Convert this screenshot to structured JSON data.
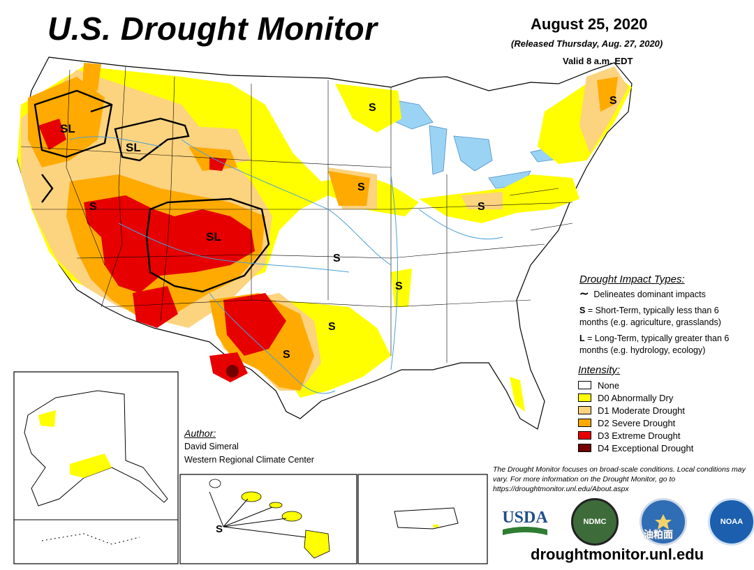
{
  "header": {
    "title": "U.S. Drought Monitor",
    "date": "August 25, 2020",
    "released": "(Released Thursday, Aug. 27, 2020)",
    "valid": "Valid 8 a.m. EDT"
  },
  "impact": {
    "heading": "Drought Impact Types:",
    "delineates": "Delineates dominant impacts",
    "short_key": "S",
    "short_text": " = Short-Term, typically less than 6 months (e.g. agriculture, grasslands)",
    "long_key": "L",
    "long_text": " = Long-Term, typically greater than 6 months (e.g. hydrology, ecology)"
  },
  "intensity": {
    "heading": "Intensity:",
    "items": [
      {
        "label": "None",
        "color": "#ffffff"
      },
      {
        "label": "D0 Abnormally Dry",
        "color": "#ffff00"
      },
      {
        "label": "D1 Moderate Drought",
        "color": "#fcd37f"
      },
      {
        "label": "D2 Severe Drought",
        "color": "#ffaa00"
      },
      {
        "label": "D3 Extreme Drought",
        "color": "#e60000"
      },
      {
        "label": "D4 Exceptional Drought",
        "color": "#730000"
      }
    ]
  },
  "author": {
    "heading": "Author:",
    "name": "David Simeral",
    "org": "Western Regional Climate Center"
  },
  "note": "The Drought Monitor focuses on broad-scale conditions. Local conditions may vary. For more information on the Drought Monitor, go to https://droughtmonitor.unl.edu/About.aspx",
  "url": "droughtmonitor.unl.edu",
  "watermark": "油粕面",
  "map_labels": {
    "sl_oregon": "SL",
    "sl_idaho": "SL",
    "sl_colorado": "SL",
    "s_nevada": "S",
    "s_minnesota": "S",
    "s_iowa": "S",
    "s_ohio": "S",
    "s_maine": "S",
    "s_kansas": "S",
    "s_arkansas": "S",
    "s_oklahoma": "S",
    "s_texas": "S",
    "s_hawaii": "S"
  },
  "logos": {
    "usda": "USDA",
    "ndmc": "NDMC",
    "noaa": "NOAA"
  }
}
